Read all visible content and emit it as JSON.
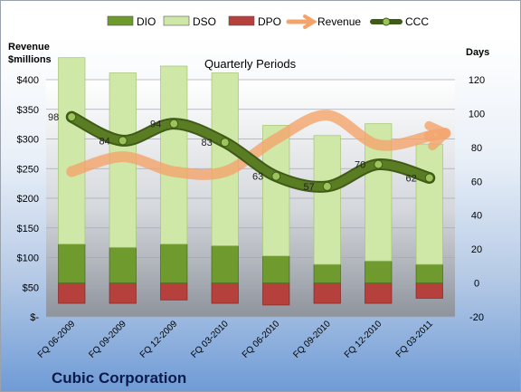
{
  "chart_data": {
    "type": "bar",
    "title": "Quarterly Periods",
    "company": "Cubic Corporation",
    "ylabel_left": "Revenue\n$millions",
    "ylabel_right": "Days",
    "categories": [
      "FQ 06-2009",
      "FQ 09-2009",
      "FQ 12-2009",
      "FQ 03-2010",
      "FQ 06-2010",
      "FQ 09-2010",
      "FQ 12-2010",
      "FQ 03-2011"
    ],
    "series": [
      {
        "name": "DIO",
        "type": "bar",
        "axis": "right",
        "values": [
          23,
          21,
          23,
          22,
          16,
          11,
          13,
          11
        ],
        "color": "#6e9a2e"
      },
      {
        "name": "DSO",
        "type": "bar",
        "axis": "right",
        "values": [
          110,
          103,
          105,
          102,
          77,
          76,
          81,
          71
        ],
        "color": "#cfe8a8"
      },
      {
        "name": "DPO",
        "type": "bar",
        "axis": "right",
        "values": [
          -12,
          -12,
          -10,
          -12,
          -13,
          -12,
          -12,
          -9
        ],
        "color": "#b5403c"
      },
      {
        "name": "Revenue",
        "type": "line",
        "axis": "left",
        "values": [
          245,
          270,
          245,
          245,
          300,
          340,
          290,
          305
        ],
        "color": "#f4a46a"
      },
      {
        "name": "CCC",
        "type": "line",
        "axis": "right",
        "values": [
          98,
          84,
          94,
          83,
          63,
          57,
          70,
          62
        ],
        "color": "#5a7d24"
      }
    ],
    "y_left": {
      "min": 0,
      "max": 400,
      "step": 50,
      "ticks": [
        "$-",
        "$50",
        "$100",
        "$150",
        "$200",
        "$250",
        "$300",
        "$350",
        "$400"
      ]
    },
    "y_right": {
      "min": -20,
      "max": 120,
      "step": 20,
      "ticks": [
        "-20",
        "0",
        "20",
        "40",
        "60",
        "80",
        "100",
        "120"
      ]
    },
    "data_labels": [
      "98",
      "84",
      "94",
      "83",
      "63",
      "57",
      "70",
      "62"
    ],
    "legend_position": "top"
  }
}
